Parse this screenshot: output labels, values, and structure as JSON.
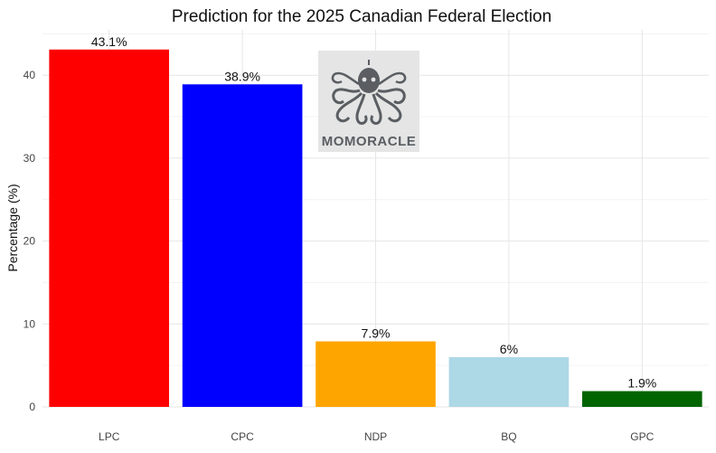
{
  "chart_data": {
    "type": "bar",
    "title": "Prediction for the 2025 Canadian Federal Election",
    "xlabel": "",
    "ylabel": "Percentage (%)",
    "categories": [
      "LPC",
      "CPC",
      "NDP",
      "BQ",
      "GPC"
    ],
    "values": [
      43.1,
      38.9,
      7.9,
      6,
      1.9
    ],
    "data_labels": [
      "43.1%",
      "38.9%",
      "7.9%",
      "6%",
      "1.9%"
    ],
    "colors": [
      "#ff0000",
      "#0000ff",
      "#ffa500",
      "#add8e6",
      "#006400"
    ],
    "ylim": [
      0,
      45
    ],
    "yticks": [
      0,
      10,
      20,
      30,
      40
    ],
    "grid": true,
    "legend": "none"
  },
  "watermark": {
    "text": "MOMORACLE",
    "icon": "octopus-icon"
  }
}
